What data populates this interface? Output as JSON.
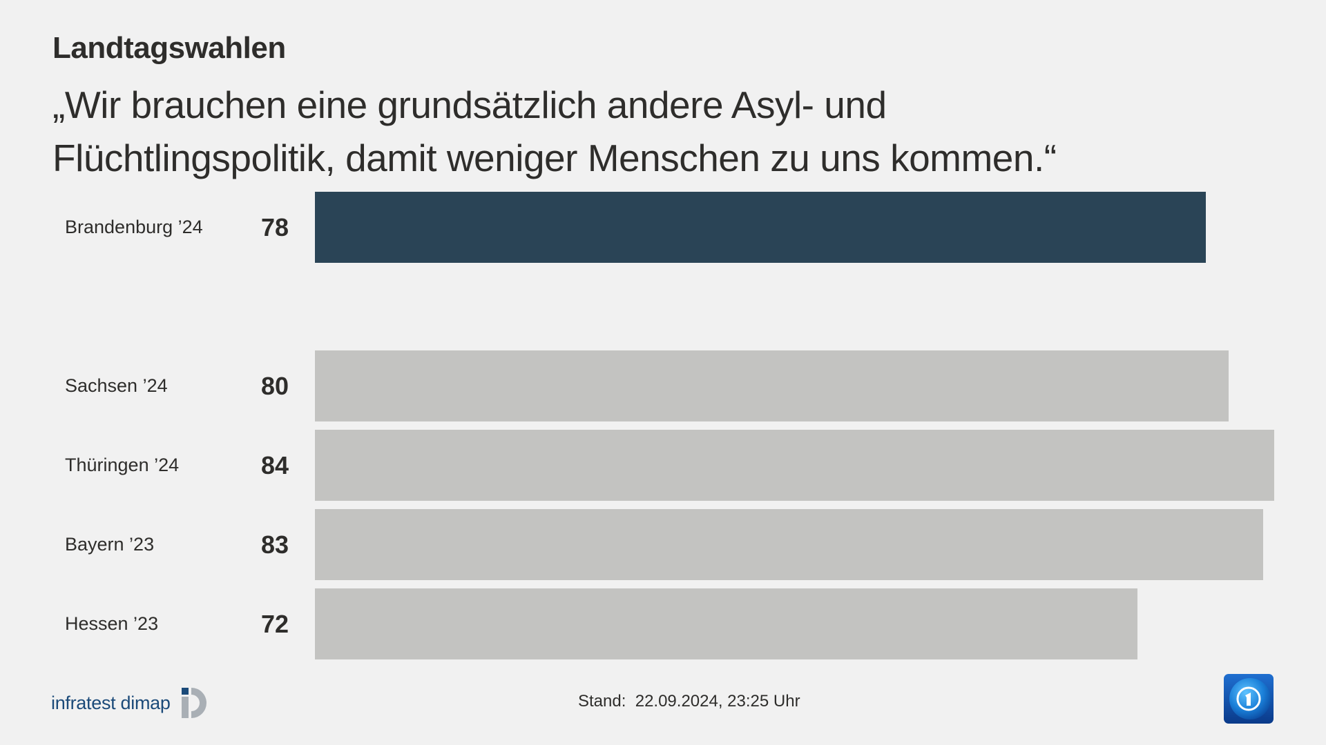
{
  "header": {
    "kicker": "Landtagswahlen",
    "headline_lines": [
      "„Wir brauchen eine grundsätzlich andere Asyl- und",
      "Flüchtlingspolitik, damit weniger Menschen zu uns kommen.“"
    ]
  },
  "colors": {
    "background": "#f1f1f1",
    "text": "#2e2d2b",
    "highlight_bar": "#2a4456",
    "comparison_bar": "#c3c3c1",
    "infratest_blue": "#1b4a79",
    "infratest_gray": "#a9afb5"
  },
  "rows": [
    {
      "label": "Brandenburg ’24",
      "value": "78",
      "highlight": true
    },
    {
      "label": "Sachsen ’24",
      "value": "80",
      "highlight": false
    },
    {
      "label": "Thüringen ’24",
      "value": "84",
      "highlight": false
    },
    {
      "label": "Bayern ’23",
      "value": "83",
      "highlight": false
    },
    {
      "label": "Hessen ’23",
      "value": "72",
      "highlight": false
    }
  ],
  "footer": {
    "source_brand": "infratest dimap",
    "stand": "Stand:  22.09.2024, 23:25 Uhr",
    "broadcaster_logo": "tagesschau-logo-icon"
  },
  "chart_data": {
    "type": "bar",
    "orientation": "horizontal",
    "title": "Landtagswahlen",
    "subtitle": "„Wir brauchen eine grundsätzlich andere Asyl- und Flüchtlingspolitik, damit weniger Menschen zu uns kommen.“",
    "categories": [
      "Brandenburg ’24",
      "Sachsen ’24",
      "Thüringen ’24",
      "Bayern ’23",
      "Hessen ’23"
    ],
    "values": [
      78,
      80,
      84,
      83,
      72
    ],
    "highlighted_category": "Brandenburg ’24",
    "xlabel": "",
    "ylabel": "",
    "grid": false,
    "legend": null,
    "source": "infratest dimap",
    "annotation": "Stand:  22.09.2024, 23:25 Uhr"
  }
}
